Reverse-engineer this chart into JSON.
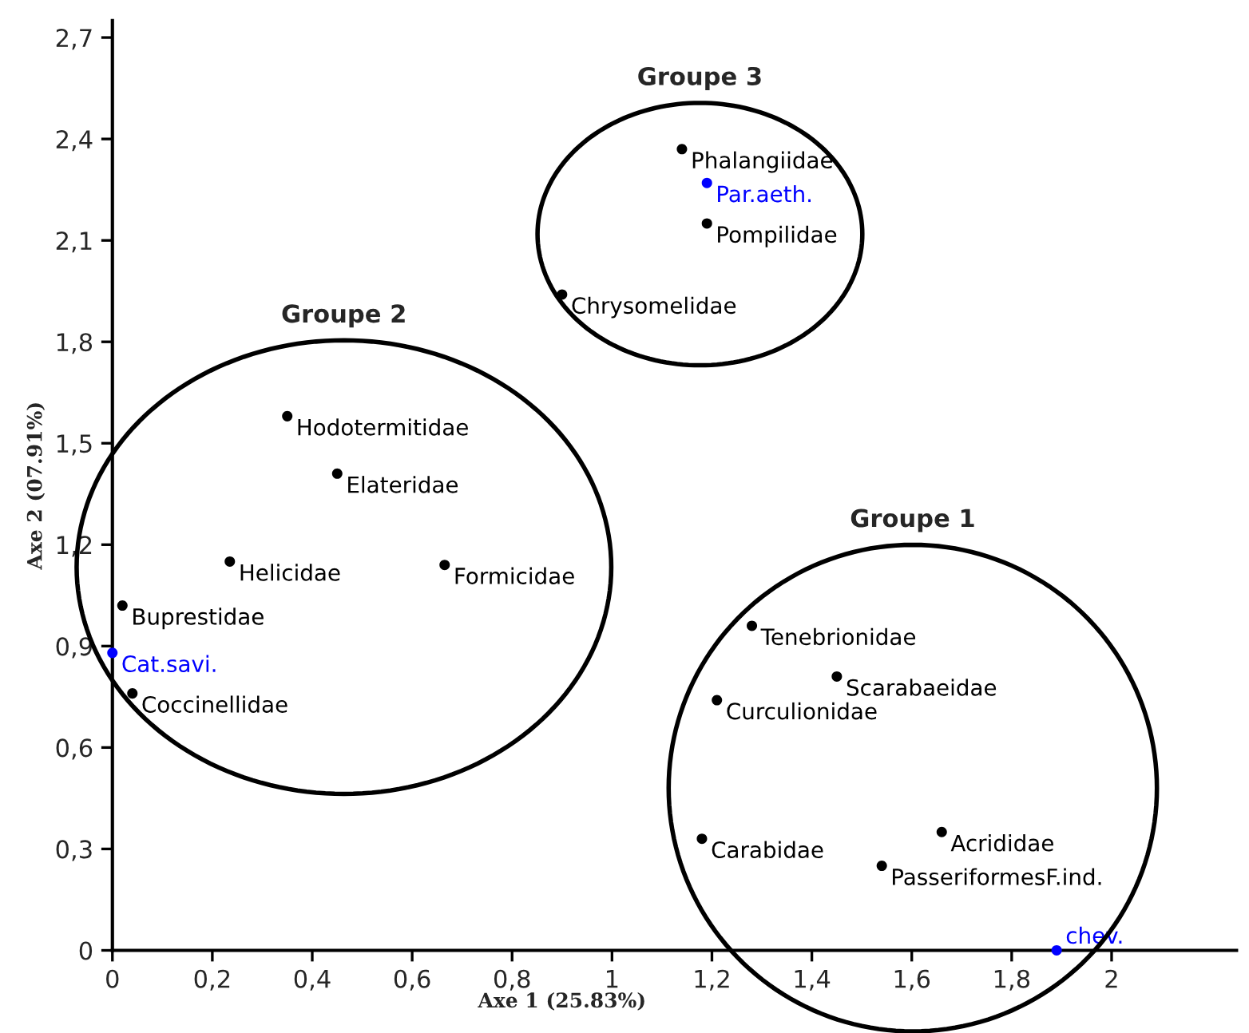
{
  "chart_data": {
    "type": "scatter",
    "xlabel": "Axe 1 (25.83%)",
    "ylabel": "Axe 2 (07.91%)",
    "xlim": [
      0,
      2.25
    ],
    "ylim": [
      0,
      2.75
    ],
    "xticks": [
      0,
      {
        "value": 0.2,
        "label": "0,2"
      },
      {
        "value": 0.4,
        "label": "0,4"
      },
      {
        "value": 0.6,
        "label": "0,6"
      },
      {
        "value": 0.8,
        "label": "0,8"
      },
      1,
      {
        "value": 1.2,
        "label": "1,2"
      },
      {
        "value": 1.4,
        "label": "1,4"
      },
      {
        "value": 1.6,
        "label": "1,6"
      },
      {
        "value": 1.8,
        "label": "1,8"
      },
      2
    ],
    "yticks": [
      0,
      {
        "value": 0.3,
        "label": "0,3"
      },
      {
        "value": 0.6,
        "label": "0,6"
      },
      {
        "value": 0.9,
        "label": "0,9"
      },
      {
        "value": 1.2,
        "label": "1,2"
      },
      {
        "value": 1.5,
        "label": "1,5"
      },
      {
        "value": 1.8,
        "label": "1,8"
      },
      {
        "value": 2.1,
        "label": "2,1"
      },
      {
        "value": 2.4,
        "label": "2,4"
      },
      {
        "value": 2.7,
        "label": "2,7"
      }
    ],
    "grid": false,
    "marker": "circle",
    "annotations": [
      "Groupe 1",
      "Groupe 2",
      "Groupe 3"
    ],
    "series": [
      {
        "x": [
          1.28,
          1.45,
          1.21,
          1.18,
          1.66,
          1.54,
          1.89
        ],
        "values": [
          0.96,
          0.81,
          0.74,
          0.33,
          0.35,
          0.25,
          0.0
        ],
        "colors": [
          "#000000",
          "#000000",
          "#000000",
          "#000000",
          "#000000",
          "#000000",
          "#0000ff"
        ],
        "value_labels": [
          "Tenebrionidae",
          "Scarabaeidae",
          "Curculionidae",
          "Carabidae",
          "Acrididae",
          "PasseriformesF.ind.",
          "chev."
        ]
      },
      {
        "x": [
          0.35,
          0.45,
          0.235,
          0.665,
          0.02,
          0.0,
          0.04
        ],
        "values": [
          1.58,
          1.41,
          1.15,
          1.14,
          1.02,
          0.88,
          0.76
        ],
        "colors": [
          "#000000",
          "#000000",
          "#000000",
          "#000000",
          "#000000",
          "#0000ff",
          "#000000"
        ],
        "value_labels": [
          "Hodotermitidae",
          "Elateridae",
          "Helicidae",
          "Formicidae",
          "Buprestidae",
          "Cat.savi.",
          "Coccinellidae"
        ]
      },
      {
        "x": [
          1.14,
          1.19,
          1.19,
          0.9
        ],
        "values": [
          2.37,
          2.27,
          2.15,
          1.94
        ],
        "colors": [
          "#000000",
          "#0000ff",
          "#000000",
          "#000000"
        ],
        "value_labels": [
          "Phalangiidae",
          "Par.aeth.",
          "Pompilidae",
          "Chrysomelidae"
        ]
      }
    ]
  }
}
